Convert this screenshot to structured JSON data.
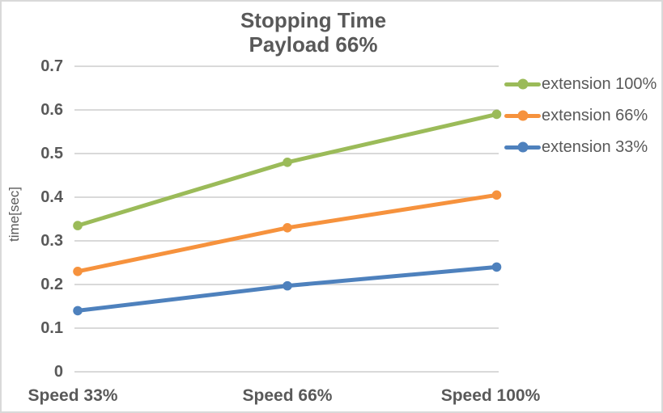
{
  "title": {
    "line1": "Stopping Time",
    "line2": "Payload 66%"
  },
  "chart_data": {
    "type": "line",
    "title": "Stopping Time Payload 66%",
    "categories": [
      "Speed 33%",
      "Speed 66%",
      "Speed 100%"
    ],
    "series": [
      {
        "name": "extension 100%",
        "color": "#9bbb59",
        "values": [
          0.335,
          0.48,
          0.59
        ]
      },
      {
        "name": "extension 66%",
        "color": "#f6923d",
        "values": [
          0.23,
          0.33,
          0.405
        ]
      },
      {
        "name": "extension 33%",
        "color": "#4e81bd",
        "values": [
          0.14,
          0.197,
          0.24
        ]
      }
    ],
    "xlabel": "",
    "ylabel": "time[sec]",
    "ylim": [
      0,
      0.7
    ],
    "ytick_step": 0.1,
    "ytick_labels": [
      "0.7",
      "0.6",
      "0.5",
      "0.4",
      "0.3",
      "0.2",
      "0.1",
      "0"
    ],
    "grid": "horizontal-only",
    "legend_position": "right",
    "marker": "circle"
  },
  "colors": {
    "text": "#595959",
    "gridline": "#d9d9d9",
    "border": "#d9d9d9",
    "background": "#ffffff"
  }
}
